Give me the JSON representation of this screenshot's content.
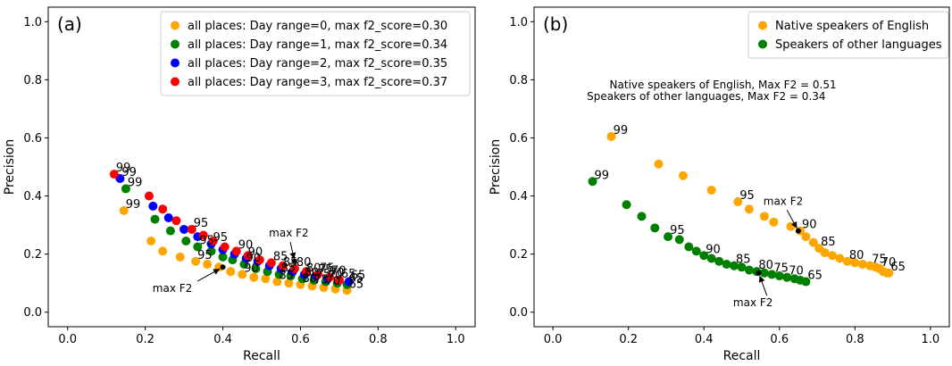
{
  "chart_data": [
    {
      "type": "scatter",
      "panel_label": "(a)",
      "xlabel": "Recall",
      "ylabel": "Precision",
      "xlim": [
        -0.05,
        1.05
      ],
      "ylim": [
        -0.05,
        1.05
      ],
      "xticks": [
        "0.0",
        "0.2",
        "0.4",
        "0.6",
        "0.8",
        "1.0"
      ],
      "yticks": [
        "0.0",
        "0.2",
        "0.4",
        "0.6",
        "0.8",
        "1.0"
      ],
      "xtick_values": [
        0.0,
        0.2,
        0.4,
        0.6,
        0.8,
        1.0
      ],
      "ytick_values": [
        0.0,
        0.2,
        0.4,
        0.6,
        0.8,
        1.0
      ],
      "grid": false,
      "legend_position": "top-right",
      "series": [
        {
          "name": "all places: Day range=0, max f2_score=0.30",
          "color": "#ffa500",
          "points": [
            [
              0.145,
              0.35
            ],
            [
              0.215,
              0.245
            ],
            [
              0.245,
              0.21
            ],
            [
              0.29,
              0.19
            ],
            [
              0.33,
              0.175
            ],
            [
              0.36,
              0.165
            ],
            [
              0.39,
              0.155
            ],
            [
              0.42,
              0.14
            ],
            [
              0.45,
              0.13
            ],
            [
              0.48,
              0.12
            ],
            [
              0.51,
              0.115
            ],
            [
              0.54,
              0.105
            ],
            [
              0.57,
              0.1
            ],
            [
              0.6,
              0.095
            ],
            [
              0.63,
              0.09
            ],
            [
              0.66,
              0.085
            ],
            [
              0.69,
              0.08
            ],
            [
              0.72,
              0.075
            ]
          ],
          "labels": [
            {
              "text": "99",
              "x": 0.145,
              "y": 0.35
            },
            {
              "text": "95",
              "x": 0.33,
              "y": 0.175
            },
            {
              "text": "90",
              "x": 0.45,
              "y": 0.13
            },
            {
              "text": "85",
              "x": 0.54,
              "y": 0.105
            },
            {
              "text": "80",
              "x": 0.6,
              "y": 0.095
            },
            {
              "text": "75",
              "x": 0.63,
              "y": 0.09
            },
            {
              "text": "70",
              "x": 0.66,
              "y": 0.085
            },
            {
              "text": "65",
              "x": 0.72,
              "y": 0.075
            }
          ]
        },
        {
          "name": "all places: Day range=1, max f2_score=0.34",
          "color": "#008000",
          "points": [
            [
              0.15,
              0.425
            ],
            [
              0.225,
              0.32
            ],
            [
              0.265,
              0.28
            ],
            [
              0.305,
              0.245
            ],
            [
              0.335,
              0.225
            ],
            [
              0.37,
              0.21
            ],
            [
              0.4,
              0.19
            ],
            [
              0.425,
              0.18
            ],
            [
              0.455,
              0.165
            ],
            [
              0.485,
              0.15
            ],
            [
              0.515,
              0.14
            ],
            [
              0.545,
              0.13
            ],
            [
              0.575,
              0.125
            ],
            [
              0.605,
              0.115
            ],
            [
              0.635,
              0.11
            ],
            [
              0.665,
              0.105
            ],
            [
              0.695,
              0.1
            ],
            [
              0.72,
              0.095
            ]
          ],
          "labels": [
            {
              "text": "99",
              "x": 0.15,
              "y": 0.425
            },
            {
              "text": "95",
              "x": 0.335,
              "y": 0.225
            },
            {
              "text": "90",
              "x": 0.455,
              "y": 0.165
            },
            {
              "text": "85",
              "x": 0.545,
              "y": 0.13
            },
            {
              "text": "80",
              "x": 0.605,
              "y": 0.115
            },
            {
              "text": "75",
              "x": 0.635,
              "y": 0.11
            },
            {
              "text": "70",
              "x": 0.665,
              "y": 0.105
            },
            {
              "text": "65",
              "x": 0.72,
              "y": 0.095
            }
          ]
        },
        {
          "name": "all places: Day range=2, max f2_score=0.35",
          "color": "#0000ff",
          "points": [
            [
              0.135,
              0.46
            ],
            [
              0.22,
              0.365
            ],
            [
              0.26,
              0.325
            ],
            [
              0.3,
              0.285
            ],
            [
              0.335,
              0.26
            ],
            [
              0.37,
              0.235
            ],
            [
              0.4,
              0.215
            ],
            [
              0.43,
              0.2
            ],
            [
              0.46,
              0.185
            ],
            [
              0.49,
              0.175
            ],
            [
              0.52,
              0.16
            ],
            [
              0.55,
              0.15
            ],
            [
              0.58,
              0.14
            ],
            [
              0.61,
              0.13
            ],
            [
              0.64,
              0.125
            ],
            [
              0.67,
              0.115
            ],
            [
              0.7,
              0.11
            ],
            [
              0.725,
              0.105
            ]
          ],
          "labels": [
            {
              "text": "99",
              "x": 0.135,
              "y": 0.46
            },
            {
              "text": "95",
              "x": 0.37,
              "y": 0.235
            },
            {
              "text": "90",
              "x": 0.46,
              "y": 0.185
            },
            {
              "text": "85",
              "x": 0.55,
              "y": 0.15
            },
            {
              "text": "80",
              "x": 0.61,
              "y": 0.13
            },
            {
              "text": "75",
              "x": 0.64,
              "y": 0.125
            },
            {
              "text": "70",
              "x": 0.67,
              "y": 0.115
            },
            {
              "text": "65",
              "x": 0.725,
              "y": 0.105
            }
          ]
        },
        {
          "name": "all places: Day range=3, max f2_score=0.37",
          "color": "#ff0000",
          "points": [
            [
              0.12,
              0.475
            ],
            [
              0.21,
              0.4
            ],
            [
              0.245,
              0.355
            ],
            [
              0.28,
              0.315
            ],
            [
              0.32,
              0.285
            ],
            [
              0.35,
              0.265
            ],
            [
              0.375,
              0.245
            ],
            [
              0.405,
              0.225
            ],
            [
              0.435,
              0.21
            ],
            [
              0.465,
              0.195
            ],
            [
              0.495,
              0.18
            ],
            [
              0.525,
              0.17
            ],
            [
              0.555,
              0.16
            ],
            [
              0.585,
              0.15
            ],
            [
              0.615,
              0.14
            ],
            [
              0.645,
              0.13
            ],
            [
              0.675,
              0.12
            ],
            [
              0.7,
              0.11
            ]
          ],
          "labels": [
            {
              "text": "99",
              "x": 0.12,
              "y": 0.475
            },
            {
              "text": "95",
              "x": 0.32,
              "y": 0.285
            },
            {
              "text": "90",
              "x": 0.435,
              "y": 0.21
            },
            {
              "text": "85",
              "x": 0.525,
              "y": 0.17
            },
            {
              "text": "80",
              "x": 0.585,
              "y": 0.15
            },
            {
              "text": "75",
              "x": 0.645,
              "y": 0.13
            },
            {
              "text": "70",
              "x": 0.675,
              "y": 0.12
            },
            {
              "text": "65",
              "x": 0.7,
              "y": 0.11
            }
          ]
        }
      ],
      "annotations": [
        {
          "text": "max F2",
          "point": [
            0.4,
            0.155
          ],
          "text_at": [
            0.27,
            0.07
          ]
        },
        {
          "text": "max F2",
          "point": [
            0.585,
            0.175
          ],
          "text_at": [
            0.57,
            0.26
          ]
        }
      ]
    },
    {
      "type": "scatter",
      "panel_label": "(b)",
      "xlabel": "Recall",
      "ylabel": "Precision",
      "xlim": [
        -0.05,
        1.05
      ],
      "ylim": [
        -0.05,
        1.05
      ],
      "xticks": [
        "0.0",
        "0.2",
        "0.4",
        "0.6",
        "0.8",
        "1.0"
      ],
      "yticks": [
        "0.0",
        "0.2",
        "0.4",
        "0.6",
        "0.8",
        "1.0"
      ],
      "xtick_values": [
        0.0,
        0.2,
        0.4,
        0.6,
        0.8,
        1.0
      ],
      "ytick_values": [
        0.0,
        0.2,
        0.4,
        0.6,
        0.8,
        1.0
      ],
      "grid": false,
      "legend_position": "top-right",
      "text_notes": [
        {
          "text": "Native speakers of English, Max F2 = 0.51",
          "at": [
            0.15,
            0.77
          ]
        },
        {
          "text": "Speakers of other languages, Max F2 = 0.34",
          "at": [
            0.09,
            0.73
          ]
        }
      ],
      "series": [
        {
          "name": "Native speakers of English",
          "color": "#ffa500",
          "points": [
            [
              0.155,
              0.605
            ],
            [
              0.28,
              0.51
            ],
            [
              0.345,
              0.47
            ],
            [
              0.42,
              0.42
            ],
            [
              0.49,
              0.38
            ],
            [
              0.52,
              0.355
            ],
            [
              0.56,
              0.33
            ],
            [
              0.585,
              0.31
            ],
            [
              0.63,
              0.295
            ],
            [
              0.655,
              0.28
            ],
            [
              0.67,
              0.26
            ],
            [
              0.69,
              0.24
            ],
            [
              0.705,
              0.22
            ],
            [
              0.72,
              0.205
            ],
            [
              0.74,
              0.195
            ],
            [
              0.76,
              0.185
            ],
            [
              0.78,
              0.175
            ],
            [
              0.8,
              0.17
            ],
            [
              0.82,
              0.165
            ],
            [
              0.84,
              0.16
            ],
            [
              0.855,
              0.155
            ],
            [
              0.865,
              0.15
            ],
            [
              0.875,
              0.14
            ],
            [
              0.885,
              0.135
            ],
            [
              0.89,
              0.135
            ]
          ],
          "labels": [
            {
              "text": "99",
              "x": 0.155,
              "y": 0.605
            },
            {
              "text": "95",
              "x": 0.49,
              "y": 0.38
            },
            {
              "text": "90",
              "x": 0.655,
              "y": 0.28
            },
            {
              "text": "85",
              "x": 0.705,
              "y": 0.22
            },
            {
              "text": "80",
              "x": 0.78,
              "y": 0.175
            },
            {
              "text": "75",
              "x": 0.84,
              "y": 0.16
            },
            {
              "text": "70",
              "x": 0.865,
              "y": 0.15
            },
            {
              "text": "65",
              "x": 0.89,
              "y": 0.135
            }
          ]
        },
        {
          "name": "Speakers of other languages",
          "color": "#008000",
          "points": [
            [
              0.105,
              0.45
            ],
            [
              0.195,
              0.37
            ],
            [
              0.235,
              0.33
            ],
            [
              0.27,
              0.29
            ],
            [
              0.305,
              0.26
            ],
            [
              0.335,
              0.25
            ],
            [
              0.36,
              0.225
            ],
            [
              0.38,
              0.21
            ],
            [
              0.4,
              0.195
            ],
            [
              0.42,
              0.185
            ],
            [
              0.44,
              0.175
            ],
            [
              0.46,
              0.165
            ],
            [
              0.48,
              0.16
            ],
            [
              0.5,
              0.155
            ],
            [
              0.52,
              0.145
            ],
            [
              0.54,
              0.14
            ],
            [
              0.56,
              0.135
            ],
            [
              0.58,
              0.13
            ],
            [
              0.6,
              0.125
            ],
            [
              0.62,
              0.12
            ],
            [
              0.64,
              0.115
            ],
            [
              0.655,
              0.11
            ],
            [
              0.67,
              0.105
            ]
          ],
          "labels": [
            {
              "text": "99",
              "x": 0.105,
              "y": 0.45
            },
            {
              "text": "95",
              "x": 0.305,
              "y": 0.26
            },
            {
              "text": "90",
              "x": 0.4,
              "y": 0.195
            },
            {
              "text": "85",
              "x": 0.48,
              "y": 0.16
            },
            {
              "text": "80",
              "x": 0.54,
              "y": 0.14
            },
            {
              "text": "75",
              "x": 0.58,
              "y": 0.13
            },
            {
              "text": "70",
              "x": 0.62,
              "y": 0.12
            },
            {
              "text": "65",
              "x": 0.67,
              "y": 0.105
            }
          ]
        }
      ],
      "annotations": [
        {
          "text": "max F2",
          "point": [
            0.545,
            0.135
          ],
          "text_at": [
            0.53,
            0.02
          ]
        },
        {
          "text": "max F2",
          "point": [
            0.65,
            0.28
          ],
          "text_at": [
            0.61,
            0.37
          ]
        }
      ]
    }
  ]
}
